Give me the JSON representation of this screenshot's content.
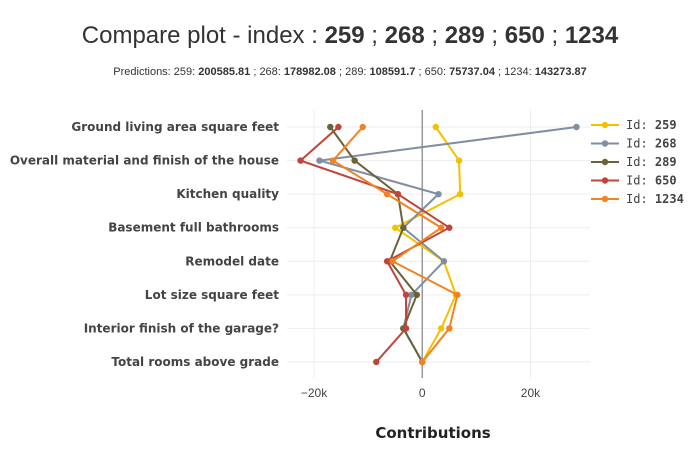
{
  "header": {
    "title_prefix": "Compare plot - index :",
    "subtitle_prefix": "Predictions:"
  },
  "chart_data": {
    "type": "line",
    "orientation": "horizontal",
    "title": "Compare plot - index : 259 ; 268 ; 289 ; 650 ; 1234",
    "subtitle": "Predictions: 259: 200585.81 ; 268: 178982.08 ; 289: 108591.7 ; 650: 75737.04 ; 1234: 143273.87",
    "xlabel": "Contributions",
    "ylabel": "",
    "xlim": [
      -25000,
      31000
    ],
    "xticks": [
      -20000,
      0,
      20000
    ],
    "xtick_labels": [
      "−20k",
      "0",
      "20k"
    ],
    "grid": true,
    "legend_position": "right",
    "categories": [
      "Ground living area square feet",
      "Overall material and finish of the house",
      "Kitchen quality",
      "Basement full bathrooms",
      "Remodel date",
      "Lot size square feet",
      "Interior finish of the garage?",
      "Total rooms above grade"
    ],
    "series": [
      {
        "id": "259",
        "prediction": "200585.81",
        "legend_prefix": "Id:",
        "color": "#f2c200",
        "values": [
          2500,
          6800,
          7000,
          -5000,
          4000,
          6200,
          3500,
          0
        ]
      },
      {
        "id": "268",
        "prediction": "178982.08",
        "legend_prefix": "Id:",
        "color": "#7f8ea3",
        "values": [
          28500,
          -19000,
          3000,
          -3500,
          4000,
          -2000,
          -3500,
          0
        ]
      },
      {
        "id": "289",
        "prediction": "108591.7",
        "legend_prefix": "Id:",
        "color": "#6b6238",
        "values": [
          -17000,
          -12500,
          -4500,
          -3500,
          -6000,
          -1000,
          -3500,
          0
        ]
      },
      {
        "id": "650",
        "prediction": "75737.04",
        "legend_prefix": "Id:",
        "color": "#c0443a",
        "values": [
          -15500,
          -22500,
          -4500,
          5000,
          -6500,
          -3000,
          -3000,
          -8500
        ]
      },
      {
        "id": "1234",
        "prediction": "143273.87",
        "legend_prefix": "Id:",
        "color": "#f58220",
        "values": [
          -11000,
          -16500,
          -6500,
          3500,
          -5500,
          6500,
          5000,
          0
        ]
      }
    ]
  }
}
